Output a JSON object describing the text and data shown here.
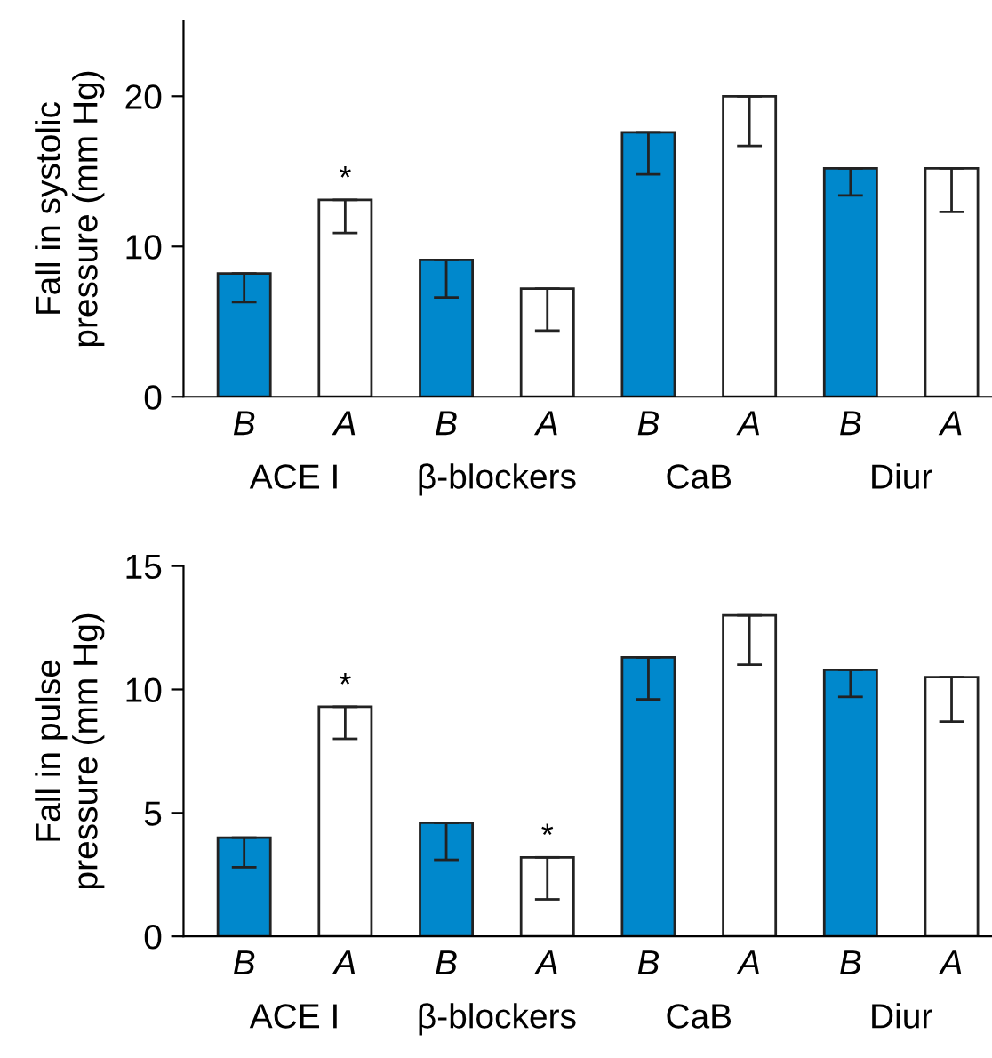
{
  "chart_data": [
    {
      "type": "bar",
      "ylabel": "Fall in systolic\npressure (mm Hg)",
      "categories": [
        "ACE I",
        "β-blockers",
        "CaB",
        "Diur"
      ],
      "ylim": [
        0,
        25
      ],
      "yticks": [
        0,
        10,
        20
      ],
      "grid": false,
      "legend": false,
      "series": [
        {
          "name": "B",
          "color": "#0088cc",
          "values": [
            8.2,
            9.1,
            17.6,
            15.2
          ],
          "errors": [
            [
              6.3,
              8.2
            ],
            [
              6.6,
              9.1
            ],
            [
              14.8,
              17.6
            ],
            [
              13.4,
              15.2
            ]
          ],
          "value_labels": [
            null,
            null,
            null,
            null
          ]
        },
        {
          "name": "A",
          "color": "#ffffff",
          "values": [
            13.1,
            7.2,
            20.0,
            15.2
          ],
          "errors": [
            [
              10.9,
              13.1
            ],
            [
              4.4,
              7.2
            ],
            [
              16.7,
              20.0
            ],
            [
              12.3,
              15.2
            ]
          ],
          "value_labels": [
            "*",
            null,
            null,
            null
          ]
        }
      ]
    },
    {
      "type": "bar",
      "ylabel": "Fall in pulse\npressure (mm Hg)",
      "categories": [
        "ACE I",
        "β-blockers",
        "CaB",
        "Diur"
      ],
      "ylim": [
        0,
        15
      ],
      "yticks": [
        0,
        5,
        10,
        15
      ],
      "grid": false,
      "legend": false,
      "series": [
        {
          "name": "B",
          "color": "#0088cc",
          "values": [
            4.0,
            4.6,
            11.3,
            10.8
          ],
          "errors": [
            [
              2.8,
              4.0
            ],
            [
              3.1,
              4.6
            ],
            [
              9.6,
              11.3
            ],
            [
              9.7,
              10.8
            ]
          ],
          "value_labels": [
            null,
            null,
            null,
            null
          ]
        },
        {
          "name": "A",
          "color": "#ffffff",
          "values": [
            9.3,
            3.2,
            13.0,
            10.5
          ],
          "errors": [
            [
              8.0,
              9.3
            ],
            [
              1.5,
              3.2
            ],
            [
              11.0,
              13.0
            ],
            [
              8.7,
              10.5
            ]
          ],
          "value_labels": [
            "*",
            "*",
            null,
            null
          ]
        }
      ]
    }
  ]
}
